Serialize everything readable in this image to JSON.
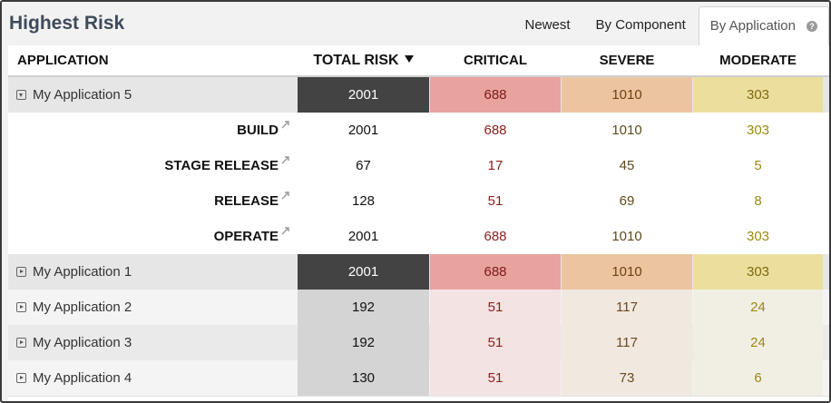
{
  "header": {
    "title": "Highest Risk",
    "tabs": [
      {
        "label": "Newest",
        "active": false
      },
      {
        "label": "By Component",
        "active": false
      },
      {
        "label": "By Application",
        "active": true
      }
    ],
    "help_icon": "question-circle-icon"
  },
  "columns": {
    "application": "APPLICATION",
    "total_risk": "TOTAL RISK",
    "critical": "CRITICAL",
    "severe": "SEVERE",
    "moderate": "MODERATE",
    "sort": "descending"
  },
  "rows": [
    {
      "name": "My Application 5",
      "expanded": true,
      "total": "2001",
      "critical": "688",
      "severe": "1010",
      "moderate": "303"
    },
    {
      "name": "BUILD",
      "total": "2001",
      "critical": "688",
      "severe": "1010",
      "moderate": "303"
    },
    {
      "name": "STAGE RELEASE",
      "total": "67",
      "critical": "17",
      "severe": "45",
      "moderate": "5"
    },
    {
      "name": "RELEASE",
      "total": "128",
      "critical": "51",
      "severe": "69",
      "moderate": "8"
    },
    {
      "name": "OPERATE",
      "total": "2001",
      "critical": "688",
      "severe": "1010",
      "moderate": "303"
    },
    {
      "name": "My Application 1",
      "expanded": false,
      "total": "2001",
      "critical": "688",
      "severe": "1010",
      "moderate": "303"
    },
    {
      "name": "My Application 2",
      "expanded": false,
      "total": "192",
      "critical": "51",
      "severe": "117",
      "moderate": "24"
    },
    {
      "name": "My Application 3",
      "expanded": false,
      "total": "192",
      "critical": "51",
      "severe": "117",
      "moderate": "24"
    },
    {
      "name": "My Application 4",
      "expanded": false,
      "total": "130",
      "critical": "51",
      "severe": "73",
      "moderate": "6"
    }
  ],
  "colors": {
    "title": "#3f4a5a",
    "total_highlight": "#434343",
    "critical_highlight": "#e8a39f",
    "severe_highlight": "#ecc5a0",
    "moderate_highlight": "#ecdf9e"
  }
}
